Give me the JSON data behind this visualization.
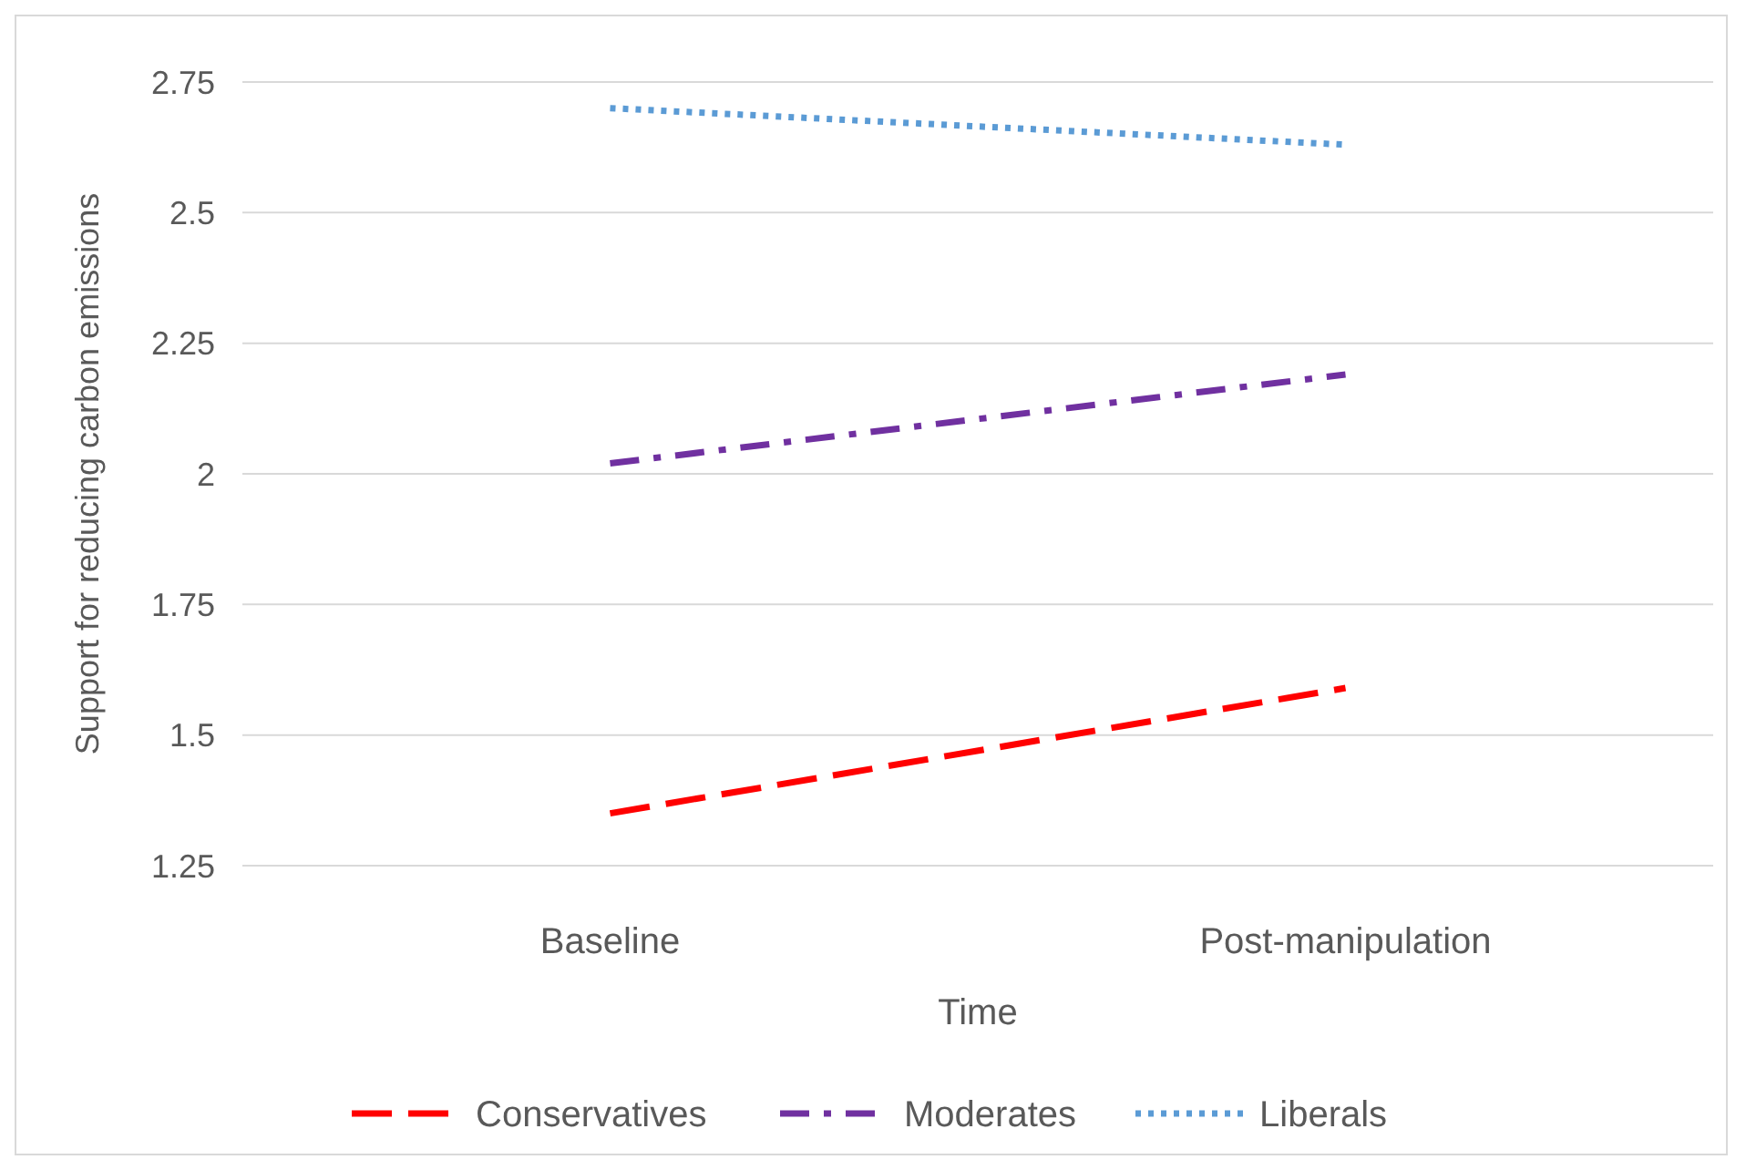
{
  "chart_data": {
    "type": "line",
    "xlabel": "Time",
    "ylabel": "Support for reducing carbon emissions",
    "categories": [
      "Baseline",
      "Post-manipulation"
    ],
    "series": [
      {
        "name": "Conservatives",
        "color": "#ff0000",
        "values": [
          1.35,
          1.59
        ],
        "line_style": "dashed"
      },
      {
        "name": "Moderates",
        "color": "#7030a0",
        "values": [
          2.02,
          2.19
        ],
        "line_style": "dashdot"
      },
      {
        "name": "Liberals",
        "color": "#5b9bd5",
        "values": [
          2.7,
          2.63
        ],
        "line_style": "dotted"
      }
    ],
    "ylim": [
      1.25,
      2.75
    ],
    "yticks": [
      1.25,
      1.5,
      1.75,
      2,
      2.25,
      2.5,
      2.75
    ],
    "grid": "y",
    "legend": "bottom"
  }
}
